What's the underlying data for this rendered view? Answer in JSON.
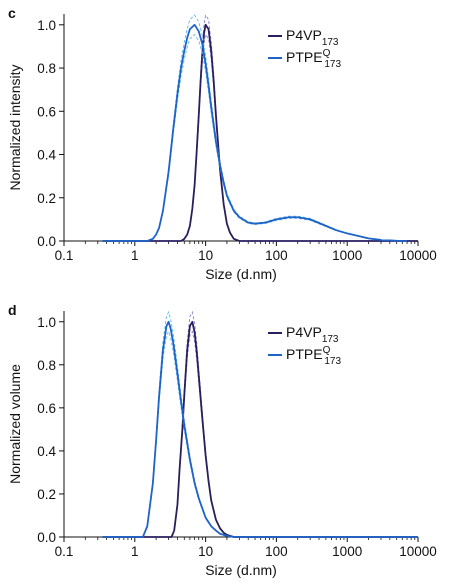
{
  "chart_data": [
    {
      "panel_label": "c",
      "type": "line",
      "xscale": "log",
      "xlim": [
        0.1,
        10000
      ],
      "ylim": [
        0,
        1.05
      ],
      "x_ticks": [
        0.1,
        1,
        10,
        100,
        1000,
        10000
      ],
      "x_tick_labels": [
        "0.1",
        "1",
        "10",
        "100",
        "1000",
        "10000"
      ],
      "y_ticks": [
        0,
        0.2,
        0.4,
        0.6,
        0.8,
        1.0
      ],
      "y_tick_labels": [
        "0.0",
        "0.2",
        "0.4",
        "0.6",
        "0.8",
        "1.0"
      ],
      "xlabel": "Size (d.nm)",
      "ylabel": "Normalized intensity",
      "legend_position": "top-right",
      "series": [
        {
          "name": "P4VP",
          "name_sub": "173",
          "name_sup": "",
          "color": "#2a1f5e",
          "x": [
            0.35,
            4.5,
            5.0,
            5.5,
            6.0,
            6.5,
            7.0,
            7.5,
            8.0,
            8.5,
            9.0,
            9.5,
            10,
            11,
            12,
            13,
            14,
            15,
            16,
            18,
            20,
            22,
            25,
            30,
            40,
            10000
          ],
          "y": [
            0,
            0,
            0.01,
            0.03,
            0.07,
            0.15,
            0.26,
            0.42,
            0.58,
            0.74,
            0.87,
            0.96,
            1.0,
            0.98,
            0.88,
            0.74,
            0.58,
            0.45,
            0.33,
            0.17,
            0.08,
            0.04,
            0.01,
            0,
            0,
            0
          ]
        },
        {
          "name": "PTPE",
          "name_sub": "173",
          "name_sup": "Q",
          "color": "#1f63c9",
          "x": [
            0.35,
            1.5,
            1.8,
            2.0,
            2.2,
            2.5,
            3.0,
            3.5,
            4.0,
            4.5,
            5.0,
            5.5,
            6.0,
            7.0,
            8.0,
            9.0,
            10,
            11,
            12,
            14,
            16,
            18,
            20,
            25,
            30,
            40,
            50,
            70,
            100,
            150,
            200,
            300,
            500,
            700,
            1000,
            2000,
            3000,
            5000,
            7000
          ],
          "y": [
            0,
            0,
            0.01,
            0.03,
            0.06,
            0.14,
            0.32,
            0.52,
            0.68,
            0.8,
            0.88,
            0.94,
            0.98,
            1.0,
            0.97,
            0.91,
            0.82,
            0.72,
            0.62,
            0.46,
            0.35,
            0.27,
            0.21,
            0.14,
            0.11,
            0.085,
            0.08,
            0.085,
            0.1,
            0.11,
            0.11,
            0.1,
            0.07,
            0.05,
            0.035,
            0.012,
            0.005,
            0.001,
            0
          ]
        }
      ]
    },
    {
      "panel_label": "d",
      "type": "line",
      "xscale": "log",
      "xlim": [
        0.1,
        10000
      ],
      "ylim": [
        0,
        1.05
      ],
      "x_ticks": [
        0.1,
        1,
        10,
        100,
        1000,
        10000
      ],
      "x_tick_labels": [
        "0.1",
        "1",
        "10",
        "100",
        "1000",
        "10000"
      ],
      "y_ticks": [
        0,
        0.2,
        0.4,
        0.6,
        0.8,
        1.0
      ],
      "y_tick_labels": [
        "0.0",
        "0.2",
        "0.4",
        "0.6",
        "0.8",
        "1.0"
      ],
      "xlabel": "Size (d.nm)",
      "ylabel": "Normalized volume",
      "legend_position": "top-right",
      "series": [
        {
          "name": "P4VP",
          "name_sub": "173",
          "name_sup": "",
          "color": "#2a1f5e",
          "x": [
            0.35,
            3.3,
            3.6,
            4.0,
            4.3,
            4.7,
            5.0,
            5.5,
            6.0,
            6.5,
            7.0,
            7.5,
            8.0,
            9.0,
            10,
            11,
            12,
            14,
            16,
            18,
            20,
            25,
            10000
          ],
          "y": [
            0,
            0,
            0.03,
            0.15,
            0.32,
            0.5,
            0.66,
            0.87,
            0.98,
            1.0,
            0.95,
            0.86,
            0.75,
            0.55,
            0.38,
            0.26,
            0.17,
            0.08,
            0.04,
            0.02,
            0.01,
            0,
            0
          ]
        },
        {
          "name": "PTPE",
          "name_sub": "173",
          "name_sup": "Q",
          "color": "#1f63c9",
          "x": [
            0.35,
            1.3,
            1.5,
            1.8,
            2.0,
            2.2,
            2.5,
            2.8,
            3.0,
            3.2,
            3.5,
            4.0,
            4.5,
            5.0,
            6.0,
            7.0,
            8.0,
            10,
            12,
            14,
            16,
            20,
            25,
            10000
          ],
          "y": [
            0,
            0,
            0.05,
            0.25,
            0.45,
            0.65,
            0.87,
            0.98,
            1.0,
            0.97,
            0.9,
            0.76,
            0.63,
            0.52,
            0.36,
            0.25,
            0.18,
            0.09,
            0.05,
            0.03,
            0.015,
            0.005,
            0,
            0
          ]
        }
      ]
    }
  ]
}
